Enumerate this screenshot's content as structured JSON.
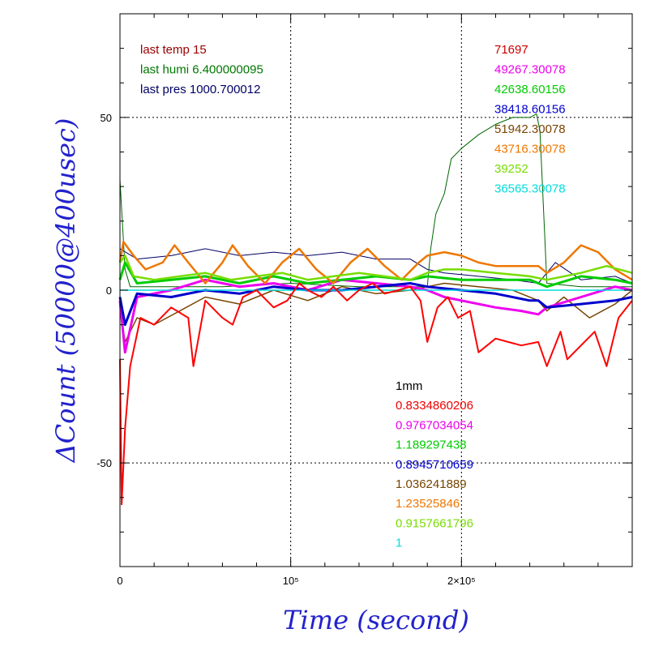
{
  "chart_data": {
    "type": "line",
    "xlabel": "Time (second)",
    "ylabel": "ΔCount (50000@400usec)",
    "xlim": [
      0,
      300000
    ],
    "ylim": [
      -80,
      80
    ],
    "grid": true,
    "x_ticks": [
      {
        "value": 0,
        "label": "0"
      },
      {
        "value": 100000,
        "label": "10⁵"
      },
      {
        "value": 200000,
        "label": "2×10⁵"
      }
    ],
    "y_ticks": [
      {
        "value": 50,
        "label": "50"
      },
      {
        "value": 0,
        "label": "0"
      },
      {
        "value": -50,
        "label": "-50"
      }
    ],
    "env_labels": [
      {
        "text": "last temp 15",
        "color": "#990000"
      },
      {
        "text": "last humi 6.400000095",
        "color": "#007700"
      },
      {
        "text": "last pres 1000.700012",
        "color": "#000066"
      }
    ],
    "count_values": [
      {
        "text": "71697",
        "color": "#cc0000"
      },
      {
        "text": "49267.30078",
        "color": "#ee00ee"
      },
      {
        "text": "42638.60156",
        "color": "#00cc00"
      },
      {
        "text": "38418.60156",
        "color": "#0000cc"
      },
      {
        "text": "51942.30078",
        "color": "#774400"
      },
      {
        "text": "43716.30078",
        "color": "#ee7700"
      },
      {
        "text": "39252",
        "color": "#77dd00"
      },
      {
        "text": "36565.30078",
        "color": "#00dddd"
      }
    ],
    "ratio_header": {
      "text": "1mm",
      "color": "#000000"
    },
    "ratio_values": [
      {
        "text": "0.8334860206",
        "color": "#ee0000"
      },
      {
        "text": "0.9767034054",
        "color": "#ee00ee"
      },
      {
        "text": "1.189297438",
        "color": "#00cc00"
      },
      {
        "text": "0.8945710659",
        "color": "#0000cc"
      },
      {
        "text": "1.036241889",
        "color": "#774400"
      },
      {
        "text": "1.23525846",
        "color": "#ee7700"
      },
      {
        "text": "0.9157661796",
        "color": "#77dd00"
      },
      {
        "text": "1",
        "color": "#00dddd"
      }
    ],
    "series": [
      {
        "color": "#000066",
        "width": 1,
        "x": [
          0,
          10000,
          30000,
          50000,
          70000,
          90000,
          110000,
          130000,
          150000,
          170000,
          180000,
          190000,
          210000,
          230000,
          245000,
          255000,
          270000,
          290000,
          300000
        ],
        "y": [
          12,
          9,
          10,
          12,
          10,
          11,
          10,
          11,
          9,
          9,
          6,
          5,
          4,
          3,
          2,
          8,
          3,
          4,
          2
        ]
      },
      {
        "color": "#006600",
        "width": 1,
        "x": [
          0,
          3000,
          6000,
          20000,
          60000,
          100000,
          140000,
          172000,
          180000,
          182000,
          185000,
          190000,
          194000,
          200000,
          210000,
          220000,
          230000,
          240000,
          244000,
          246000,
          250000,
          270000,
          300000
        ],
        "y": [
          32,
          6,
          1,
          1,
          1,
          2,
          1,
          1,
          1,
          12,
          22,
          28,
          38,
          41,
          45,
          48,
          50,
          50,
          51,
          46,
          2,
          1,
          1
        ]
      },
      {
        "color": "#774400",
        "width": 1.5,
        "x": [
          0,
          3000,
          10000,
          20000,
          35000,
          50000,
          70000,
          90000,
          110000,
          130000,
          150000,
          170000,
          180000,
          190000,
          210000,
          230000,
          245000,
          250000,
          260000,
          275000,
          290000,
          300000
        ],
        "y": [
          -5,
          -15,
          -8,
          -10,
          -6,
          -2,
          -4,
          0,
          -3,
          1,
          -1,
          0,
          1,
          2,
          1,
          0,
          -3,
          -6,
          -2,
          -8,
          -4,
          0
        ]
      },
      {
        "color": "#ee00ee",
        "width": 3,
        "x": [
          0,
          3000,
          10000,
          30000,
          50000,
          70000,
          90000,
          110000,
          130000,
          150000,
          170000,
          180000,
          190000,
          200000,
          220000,
          235000,
          245000,
          250000,
          270000,
          290000,
          300000
        ],
        "y": [
          -3,
          -18,
          -2,
          0,
          3,
          1,
          2,
          0,
          3,
          2,
          1,
          0,
          -2,
          -3,
          -5,
          -6,
          -7,
          -5,
          -2,
          1,
          0
        ]
      },
      {
        "color": "#0000cc",
        "width": 3,
        "x": [
          0,
          3000,
          10000,
          30000,
          50000,
          70000,
          90000,
          110000,
          130000,
          150000,
          170000,
          180000,
          200000,
          220000,
          240000,
          245000,
          250000,
          270000,
          290000,
          300000
        ],
        "y": [
          -2,
          -10,
          -1,
          -2,
          0,
          -1,
          1,
          0,
          0,
          1,
          2,
          1,
          0,
          -1,
          -3,
          -3,
          -5,
          -4,
          -3,
          -2
        ]
      },
      {
        "color": "#00cc00",
        "width": 3,
        "x": [
          0,
          3000,
          10000,
          30000,
          50000,
          70000,
          90000,
          110000,
          130000,
          150000,
          170000,
          180000,
          200000,
          220000,
          240000,
          250000,
          270000,
          290000,
          300000
        ],
        "y": [
          3,
          8,
          2,
          3,
          4,
          2,
          4,
          2,
          3,
          4,
          3,
          4,
          3,
          3,
          3,
          1,
          4,
          3,
          2
        ]
      },
      {
        "color": "#00dddd",
        "width": 1.5,
        "x": [
          0,
          10000,
          50000,
          100000,
          150000,
          180000,
          200000,
          250000,
          300000
        ],
        "y": [
          0,
          0,
          0,
          0,
          0,
          0,
          0,
          0,
          0
        ]
      },
      {
        "color": "#ee7700",
        "width": 2.5,
        "x": [
          0,
          2000,
          8000,
          15000,
          25000,
          32000,
          40000,
          50000,
          60000,
          66000,
          75000,
          85000,
          95000,
          105000,
          115000,
          125000,
          135000,
          145000,
          155000,
          165000,
          175000,
          180000,
          190000,
          200000,
          210000,
          220000,
          230000,
          245000,
          250000,
          260000,
          270000,
          280000,
          290000,
          300000
        ],
        "y": [
          8,
          14,
          10,
          6,
          8,
          13,
          8,
          2,
          8,
          13,
          7,
          2,
          8,
          12,
          6,
          2,
          8,
          12,
          7,
          3,
          8,
          10,
          11,
          10,
          8,
          7,
          7,
          7,
          5,
          8,
          13,
          11,
          6,
          3
        ]
      },
      {
        "color": "#77dd00",
        "width": 2.5,
        "x": [
          0,
          3000,
          8000,
          20000,
          35000,
          50000,
          65000,
          80000,
          95000,
          110000,
          125000,
          140000,
          155000,
          170000,
          180000,
          190000,
          200000,
          220000,
          240000,
          250000,
          270000,
          285000,
          300000
        ],
        "y": [
          8,
          10,
          4,
          3,
          4,
          5,
          3,
          4,
          5,
          3,
          4,
          5,
          4,
          3,
          5,
          6,
          6,
          5,
          4,
          3,
          5,
          7,
          5
        ]
      },
      {
        "color": "#ff0000",
        "width": 2,
        "x": [
          0,
          1000,
          3000,
          6000,
          12000,
          20000,
          30000,
          40000,
          43000,
          50000,
          60000,
          66000,
          72000,
          80000,
          90000,
          98000,
          105000,
          110000,
          118000,
          125000,
          133000,
          140000,
          148000,
          155000,
          163000,
          170000,
          176000,
          180000,
          186000,
          192000,
          198000,
          205000,
          210000,
          220000,
          235000,
          245000,
          250000,
          258000,
          262000,
          270000,
          278000,
          285000,
          292000,
          300000
        ],
        "y": [
          -20,
          -62,
          -40,
          -22,
          -8,
          -10,
          -5,
          -8,
          -22,
          -3,
          -8,
          -10,
          -2,
          0,
          -5,
          -3,
          2,
          0,
          -2,
          1,
          -3,
          0,
          2,
          -1,
          0,
          1,
          -3,
          -15,
          -5,
          -2,
          -8,
          -6,
          -18,
          -14,
          -16,
          -15,
          -22,
          -12,
          -20,
          -16,
          -12,
          -22,
          -8,
          -3
        ]
      }
    ]
  }
}
